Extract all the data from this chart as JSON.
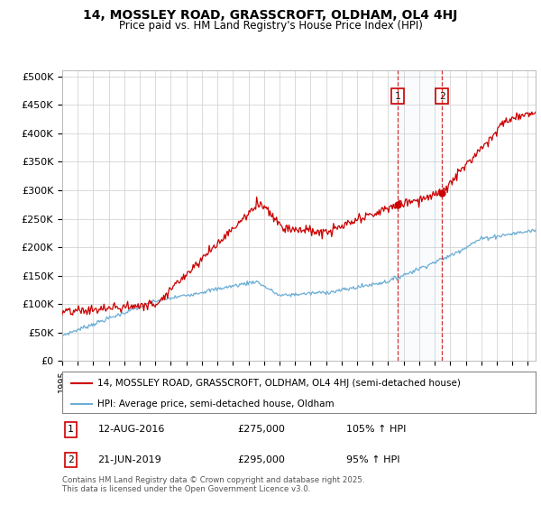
{
  "title_line1": "14, MOSSLEY ROAD, GRASSCROFT, OLDHAM, OL4 4HJ",
  "title_line2": "Price paid vs. HM Land Registry's House Price Index (HPI)",
  "ylabel_ticks": [
    "£0",
    "£50K",
    "£100K",
    "£150K",
    "£200K",
    "£250K",
    "£300K",
    "£350K",
    "£400K",
    "£450K",
    "£500K"
  ],
  "ytick_values": [
    0,
    50000,
    100000,
    150000,
    200000,
    250000,
    300000,
    350000,
    400000,
    450000,
    500000
  ],
  "ylim": [
    0,
    510000
  ],
  "xlim_start": 1995.0,
  "xlim_end": 2025.5,
  "hpi_color": "#6baed6",
  "price_color": "#cc0000",
  "sale1_date": 2016.61,
  "sale1_price": 275000,
  "sale2_date": 2019.47,
  "sale2_price": 295000,
  "legend_label1": "14, MOSSLEY ROAD, GRASSCROFT, OLDHAM, OL4 4HJ (semi-detached house)",
  "legend_label2": "HPI: Average price, semi-detached house, Oldham",
  "footnote": "Contains HM Land Registry data © Crown copyright and database right 2025.\nThis data is licensed under the Open Government Licence v3.0.",
  "background_color": "#ffffff",
  "grid_color": "#cccccc"
}
